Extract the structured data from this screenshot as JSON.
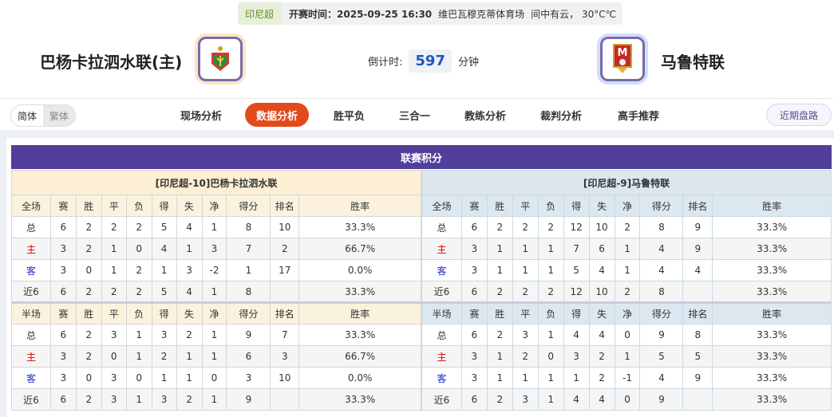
{
  "match": {
    "league": "印尼超",
    "time_label": "开赛时间：2025-09-25 16:30",
    "venue": "维巴瓦穆克蒂体育场",
    "weather": "间中有云， 30°C℃"
  },
  "home": {
    "name": "巴杨卡拉泗水联(主)",
    "logo": "bhayangkara-crest"
  },
  "away": {
    "name": "马鲁特联",
    "logo": "malut-united-crest"
  },
  "countdown": {
    "label": "倒计时:",
    "value": "597",
    "unit": "分钟"
  },
  "lang": {
    "simplified": "简体",
    "traditional": "繁体"
  },
  "tabs": [
    "现场分析",
    "数据分析",
    "胜平负",
    "三合一",
    "教练分析",
    "裁判分析",
    "高手推荐"
  ],
  "active_tab": "数据分析",
  "recent_button": "近期盘路",
  "section_title": "联赛积分",
  "colors": {
    "accent": "#523f99",
    "active_tab": "#e24a1b",
    "home_label": "#dd0000",
    "away_label": "#1a2fc9"
  },
  "headers_full": [
    "全场",
    "赛",
    "胜",
    "平",
    "负",
    "得",
    "失",
    "净",
    "得分",
    "排名",
    "胜率"
  ],
  "headers_half": [
    "半场",
    "赛",
    "胜",
    "平",
    "负",
    "得",
    "失",
    "净",
    "得分",
    "排名",
    "胜率"
  ],
  "tables": [
    {
      "title": "[印尼超-10]巴杨卡拉泗水联",
      "full": [
        [
          "总",
          "6",
          "2",
          "2",
          "2",
          "5",
          "4",
          "1",
          "8",
          "10",
          "33.3%"
        ],
        [
          "主",
          "3",
          "2",
          "1",
          "0",
          "4",
          "1",
          "3",
          "7",
          "2",
          "66.7%"
        ],
        [
          "客",
          "3",
          "0",
          "1",
          "2",
          "1",
          "3",
          "-2",
          "1",
          "17",
          "0.0%"
        ],
        [
          "近6",
          "6",
          "2",
          "2",
          "2",
          "5",
          "4",
          "1",
          "8",
          "",
          "33.3%"
        ]
      ],
      "half": [
        [
          "总",
          "6",
          "2",
          "3",
          "1",
          "3",
          "2",
          "1",
          "9",
          "7",
          "33.3%"
        ],
        [
          "主",
          "3",
          "2",
          "0",
          "1",
          "2",
          "1",
          "1",
          "6",
          "3",
          "66.7%"
        ],
        [
          "客",
          "3",
          "0",
          "3",
          "0",
          "1",
          "1",
          "0",
          "3",
          "10",
          "0.0%"
        ],
        [
          "近6",
          "6",
          "2",
          "3",
          "1",
          "3",
          "2",
          "1",
          "9",
          "",
          "33.3%"
        ]
      ]
    },
    {
      "title": "[印尼超-9]马鲁特联",
      "full": [
        [
          "总",
          "6",
          "2",
          "2",
          "2",
          "12",
          "10",
          "2",
          "8",
          "9",
          "33.3%"
        ],
        [
          "主",
          "3",
          "1",
          "1",
          "1",
          "7",
          "6",
          "1",
          "4",
          "9",
          "33.3%"
        ],
        [
          "客",
          "3",
          "1",
          "1",
          "1",
          "5",
          "4",
          "1",
          "4",
          "4",
          "33.3%"
        ],
        [
          "近6",
          "6",
          "2",
          "2",
          "2",
          "12",
          "10",
          "2",
          "8",
          "",
          "33.3%"
        ]
      ],
      "half": [
        [
          "总",
          "6",
          "2",
          "3",
          "1",
          "4",
          "4",
          "0",
          "9",
          "8",
          "33.3%"
        ],
        [
          "主",
          "3",
          "1",
          "2",
          "0",
          "3",
          "2",
          "1",
          "5",
          "5",
          "33.3%"
        ],
        [
          "客",
          "3",
          "1",
          "1",
          "1",
          "1",
          "2",
          "-1",
          "4",
          "9",
          "33.3%"
        ],
        [
          "近6",
          "6",
          "2",
          "3",
          "1",
          "4",
          "4",
          "0",
          "9",
          "",
          "33.3%"
        ]
      ]
    }
  ]
}
